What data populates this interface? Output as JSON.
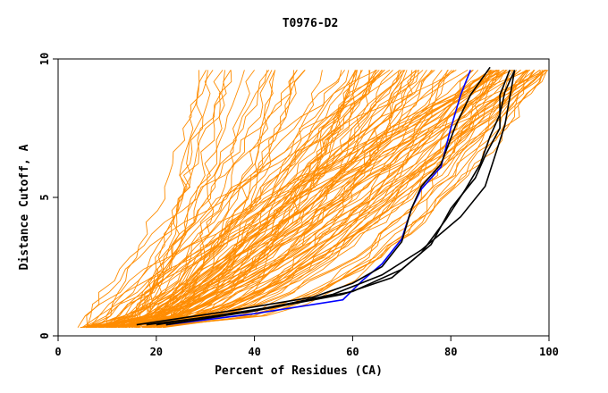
{
  "chart_data": {
    "type": "line",
    "title": "T0976-D2",
    "xlabel": "Percent of Residues (CA)",
    "ylabel": "Distance Cutoff, A",
    "xlim": [
      0,
      100
    ],
    "ylim": [
      0,
      10
    ],
    "x_ticks": [
      "0",
      "20",
      "40",
      "60",
      "80",
      "100"
    ],
    "y_ticks": [
      "0",
      "5",
      "10"
    ],
    "grid": false,
    "legend": "none",
    "colors": {
      "background_models": "#ff8c00",
      "highlight_black": "#000000",
      "highlight_blue": "#0000ff",
      "frame": "#000000"
    },
    "series": [
      {
        "color": "#0000ff",
        "x": [
          22,
          40,
          58,
          62,
          66,
          70,
          72,
          74,
          78,
          80,
          82,
          84
        ],
        "y": [
          0.4,
          0.8,
          1.3,
          2.0,
          2.6,
          3.5,
          4.6,
          5.3,
          6.1,
          7.5,
          8.7,
          9.6
        ]
      },
      {
        "color": "#000000",
        "x": [
          16,
          35,
          52,
          60,
          66,
          70,
          72,
          74,
          78,
          81,
          84,
          88
        ],
        "y": [
          0.4,
          0.9,
          1.4,
          1.9,
          2.5,
          3.4,
          4.6,
          5.4,
          6.2,
          7.6,
          8.7,
          9.7
        ]
      },
      {
        "color": "#000000",
        "x": [
          22,
          40,
          58,
          68,
          74,
          79,
          83,
          86,
          88,
          90,
          91,
          93
        ],
        "y": [
          0.4,
          0.9,
          1.5,
          2.1,
          3.0,
          4.2,
          5.3,
          6.2,
          7.2,
          8.0,
          8.8,
          9.6
        ]
      },
      {
        "color": "#000000",
        "x": [
          20,
          42,
          60,
          70,
          76,
          80,
          85,
          87,
          90,
          90,
          92
        ],
        "y": [
          0.4,
          1.0,
          1.6,
          2.4,
          3.3,
          4.6,
          5.7,
          6.5,
          7.5,
          8.7,
          9.6
        ]
      },
      {
        "color": "#000000",
        "x": [
          18,
          40,
          56,
          66,
          74,
          82,
          87,
          89,
          91,
          92,
          93
        ],
        "y": [
          0.4,
          0.9,
          1.5,
          2.2,
          3.1,
          4.3,
          5.4,
          6.5,
          7.6,
          8.6,
          9.6
        ]
      }
    ],
    "background_models": {
      "color": "#ff8c00",
      "count": 120,
      "y_range": [
        0.3,
        9.6
      ],
      "start_x_range": [
        4,
        22
      ],
      "end_x_range": [
        28,
        100
      ]
    }
  }
}
